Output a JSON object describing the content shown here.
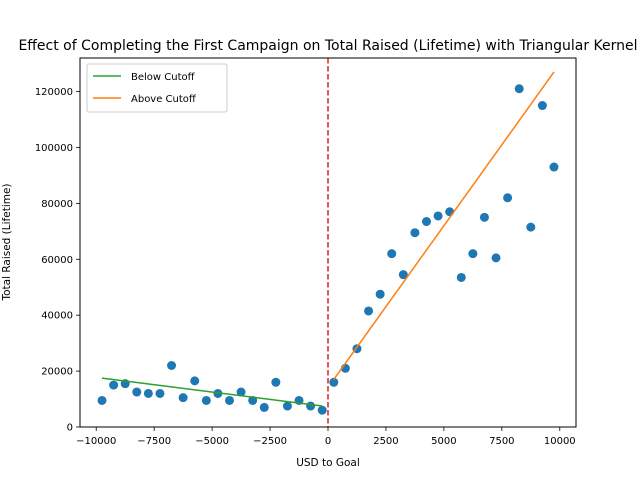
{
  "chart_data": {
    "type": "scatter",
    "title": "Effect of Completing the First Campaign on Total Raised (Lifetime) with Triangular Kernel",
    "xlabel": "USD to Goal",
    "ylabel": "Total Raised (Lifetime)",
    "xlim": [
      -10700,
      10700
    ],
    "ylim": [
      0,
      132000
    ],
    "x_ticks": [
      -10000,
      -7500,
      -5000,
      -2500,
      0,
      2500,
      5000,
      7500,
      10000
    ],
    "x_tick_labels": [
      "−10000",
      "−7500",
      "−5000",
      "−2500",
      "0",
      "2500",
      "5000",
      "7500",
      "10000"
    ],
    "y_ticks": [
      0,
      20000,
      40000,
      60000,
      80000,
      100000,
      120000
    ],
    "y_tick_labels": [
      "0",
      "20000",
      "40000",
      "60000",
      "80000",
      "100000",
      "120000"
    ],
    "grid": false,
    "legend_position": "top-left",
    "cutoff": {
      "x": 0,
      "color": "#d62728",
      "style": "dashed"
    },
    "points": {
      "color": "#1f77b4",
      "x": [
        -9750,
        -9250,
        -8750,
        -8250,
        -7750,
        -7250,
        -6750,
        -6250,
        -5750,
        -5250,
        -4750,
        -4250,
        -3750,
        -3250,
        -2750,
        -2250,
        -1750,
        -1250,
        -750,
        -250,
        250,
        750,
        1250,
        1750,
        2250,
        2750,
        3250,
        3750,
        4250,
        4750,
        5250,
        5750,
        6250,
        6750,
        7250,
        7750,
        8250,
        8750,
        9250,
        9750
      ],
      "y": [
        9500,
        15000,
        15500,
        12500,
        12000,
        12000,
        22000,
        10500,
        16500,
        9500,
        12000,
        9500,
        12500,
        9500,
        7000,
        16000,
        7500,
        9500,
        7500,
        6000,
        16000,
        21000,
        28000,
        41500,
        47500,
        62000,
        54500,
        69500,
        73500,
        75500,
        77000,
        53500,
        62000,
        75000,
        60500,
        82000,
        121000,
        71500,
        115000,
        93000
      ]
    },
    "series": [
      {
        "name": "Below Cutoff",
        "color": "#2ca02c",
        "x": [
          -9750,
          -250
        ],
        "y": [
          17500,
          7500
        ]
      },
      {
        "name": "Above Cutoff",
        "color": "#ff7f0e",
        "x": [
          250,
          9750
        ],
        "y": [
          17000,
          127000
        ]
      }
    ]
  }
}
